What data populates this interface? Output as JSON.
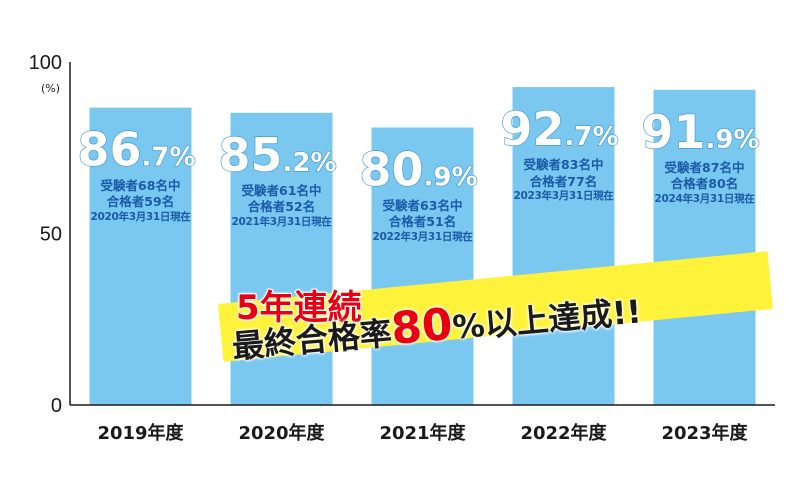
{
  "chart_data": {
    "type": "bar",
    "categories": [
      "2019年度",
      "2020年度",
      "2021年度",
      "2022年度",
      "2023年度"
    ],
    "values": [
      86.7,
      85.2,
      80.9,
      92.7,
      91.9
    ],
    "ylim": [
      0,
      100
    ],
    "yticks": [
      0,
      50,
      100
    ],
    "yunit": "(%)",
    "bar_color": "#7ac8f0",
    "axis_color": "#1a1a1a",
    "value_labels": [
      {
        "big": "86",
        "small": ".7%"
      },
      {
        "big": "85",
        "small": ".2%"
      },
      {
        "big": "80",
        "small": ".9%"
      },
      {
        "big": "92",
        "small": ".7%"
      },
      {
        "big": "91",
        "small": ".9%"
      }
    ],
    "annotations": [
      {
        "examinees": "受験者68名中",
        "passed": "合格者59名",
        "as_of": "2020年3月31日現在"
      },
      {
        "examinees": "受験者61名中",
        "passed": "合格者52名",
        "as_of": "2021年3月31日現在"
      },
      {
        "examinees": "受験者63名中",
        "passed": "合格者51名",
        "as_of": "2022年3月31日現在"
      },
      {
        "examinees": "受験者83名中",
        "passed": "合格者77名",
        "as_of": "2023年3月31日現在"
      },
      {
        "examinees": "受験者87名中",
        "passed": "合格者80名",
        "as_of": "2024年3月31日現在"
      }
    ],
    "grid": false
  },
  "callout": {
    "streak": "5年連続",
    "achieve_prefix": "最終合格率",
    "achieve_value": "80",
    "achieve_suffix": "%以上達成!!",
    "highlight_color": "#e60012",
    "banner_color": "#fff23a"
  }
}
